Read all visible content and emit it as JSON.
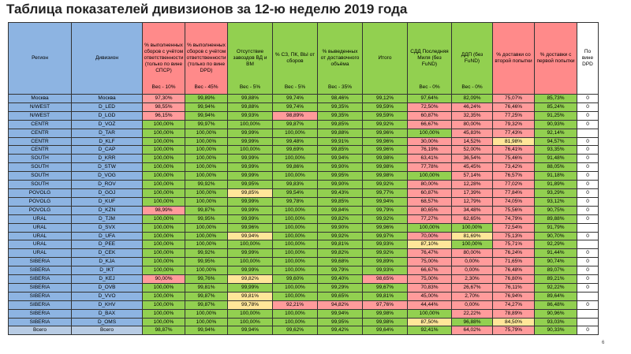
{
  "title": "Таблица показателей дивизионов за 12-ю неделю 2019 года",
  "slide_number": "6",
  "headers": [
    {
      "label": "Регион",
      "weight": ""
    },
    {
      "label": "Дивизион",
      "weight": ""
    },
    {
      "label": "% выполненных сборов с учётом ответственности (только по вине СПСР)",
      "weight": "Вес - 10%"
    },
    {
      "label": "% выполненных сборов с учётом ответственности (только по вине DPD)",
      "weight": "Вес - 45%"
    },
    {
      "label": "Отсутствие завоздов ВД и ВМ",
      "weight": "Вес - 5%"
    },
    {
      "label": "% СЗ, ПК, ВЫ от сборов",
      "weight": "Вес - 5%"
    },
    {
      "label": "% выведенных от доставочного объёма",
      "weight": "Вес - 35%"
    },
    {
      "label": "Итого",
      "weight": ""
    },
    {
      "label": "СДД Последняя Миля (без FuND)",
      "weight": "Вес - 0%"
    },
    {
      "label": "ДДП (без FuND)",
      "weight": "Вес - 0%"
    },
    {
      "label": "% доставки со второй попытки",
      "weight": ""
    },
    {
      "label": "% доставки с первой попытки",
      "weight": ""
    },
    {
      "label": "По вине DPD",
      "weight": ""
    }
  ],
  "rows": [
    {
      "cells": [
        "Москва",
        "Москва",
        "97,30%",
        "99,89%",
        "99,88%",
        "99,74%",
        "98,46%",
        "99,12%",
        "97,64%",
        "82,09%",
        "75,07%",
        "85,73%",
        "0"
      ],
      "colors": [
        "b",
        "b",
        "r",
        "g",
        "g",
        "g",
        "g",
        "g",
        "g",
        "g",
        "r",
        "g",
        "w"
      ]
    },
    {
      "cells": [
        "N/WEST",
        "D_LED",
        "98,55%",
        "99,94%",
        "99,88%",
        "99,74%",
        "99,35%",
        "99,59%",
        "72,50%",
        "46,24%",
        "76,46%",
        "85,24%",
        "0"
      ],
      "colors": [
        "b",
        "b",
        "r",
        "g",
        "g",
        "g",
        "g",
        "g",
        "r",
        "r",
        "r",
        "g",
        "w"
      ]
    },
    {
      "cells": [
        "N/WEST",
        "D_LGD",
        "96,15%",
        "99,94%",
        "99,93%",
        "98,89%",
        "99,35%",
        "99,59%",
        "60,87%",
        "32,35%",
        "77,25%",
        "91,25%",
        "0"
      ],
      "colors": [
        "b",
        "b",
        "r",
        "g",
        "g",
        "r",
        "g",
        "g",
        "r",
        "r",
        "r",
        "g",
        "w"
      ]
    },
    {
      "cells": [
        "CENTR",
        "D_VOZ",
        "100,00%",
        "99,97%",
        "100,00%",
        "99,87%",
        "99,85%",
        "99,92%",
        "66,67%",
        "80,00%",
        "79,32%",
        "90,93%",
        "0"
      ],
      "colors": [
        "b",
        "b",
        "g",
        "g",
        "g",
        "g",
        "g",
        "g",
        "r",
        "r",
        "r",
        "g",
        "w"
      ]
    },
    {
      "cells": [
        "CENTR",
        "D_TAR",
        "100,00%",
        "100,00%",
        "99,99%",
        "100,00%",
        "99,88%",
        "99,96%",
        "100,00%",
        "45,83%",
        "77,43%",
        "92,14%",
        ""
      ],
      "colors": [
        "b",
        "b",
        "g",
        "g",
        "g",
        "g",
        "g",
        "g",
        "g",
        "r",
        "r",
        "g",
        "w"
      ]
    },
    {
      "cells": [
        "CENTR",
        "D_KLF",
        "100,00%",
        "100,00%",
        "99,99%",
        "99,48%",
        "99,91%",
        "99,96%",
        "30,00%",
        "14,52%",
        "81,98%",
        "94,57%",
        "0"
      ],
      "colors": [
        "b",
        "b",
        "g",
        "g",
        "g",
        "g",
        "g",
        "g",
        "r",
        "r",
        "y",
        "g",
        "w"
      ]
    },
    {
      "cells": [
        "CENTR",
        "D_CAP",
        "100,00%",
        "100,00%",
        "100,00%",
        "99,69%",
        "99,85%",
        "99,96%",
        "76,19%",
        "52,00%",
        "76,41%",
        "93,35%",
        "0"
      ],
      "colors": [
        "b",
        "b",
        "g",
        "g",
        "g",
        "g",
        "g",
        "g",
        "r",
        "r",
        "r",
        "g",
        "w"
      ]
    },
    {
      "cells": [
        "SOUTH",
        "D_KRR",
        "100,00%",
        "100,00%",
        "99,99%",
        "100,00%",
        "99,94%",
        "99,98%",
        "63,41%",
        "36,54%",
        "75,46%",
        "91,48%",
        "0"
      ],
      "colors": [
        "b",
        "b",
        "g",
        "g",
        "g",
        "g",
        "g",
        "g",
        "r",
        "r",
        "r",
        "g",
        "w"
      ]
    },
    {
      "cells": [
        "SOUTH",
        "D_STW",
        "100,00%",
        "100,00%",
        "99,99%",
        "99,86%",
        "99,90%",
        "99,98%",
        "77,78%",
        "45,45%",
        "73,42%",
        "88,05%",
        "0"
      ],
      "colors": [
        "b",
        "b",
        "g",
        "g",
        "g",
        "g",
        "g",
        "g",
        "r",
        "r",
        "r",
        "g",
        "w"
      ]
    },
    {
      "cells": [
        "SOUTH",
        "D_VOG",
        "100,00%",
        "100,00%",
        "99,99%",
        "100,00%",
        "99,95%",
        "99,98%",
        "100,00%",
        "57,14%",
        "76,57%",
        "91,18%",
        "0"
      ],
      "colors": [
        "b",
        "b",
        "g",
        "g",
        "g",
        "g",
        "g",
        "g",
        "g",
        "r",
        "r",
        "g",
        "w"
      ]
    },
    {
      "cells": [
        "SOUTH",
        "D_ROV",
        "100,00%",
        "99,92%",
        "99,95%",
        "99,83%",
        "99,90%",
        "99,92%",
        "80,00%",
        "12,28%",
        "77,02%",
        "91,89%",
        "0"
      ],
      "colors": [
        "b",
        "b",
        "g",
        "g",
        "g",
        "g",
        "g",
        "g",
        "r",
        "r",
        "r",
        "g",
        "w"
      ]
    },
    {
      "cells": [
        "POVOLG",
        "D_GOJ",
        "100,00%",
        "100,00%",
        "99,85%",
        "99,54%",
        "99,43%",
        "99,77%",
        "60,87%",
        "17,39%",
        "77,84%",
        "93,29%",
        "0"
      ],
      "colors": [
        "b",
        "b",
        "g",
        "g",
        "y",
        "g",
        "g",
        "g",
        "r",
        "r",
        "r",
        "g",
        "w"
      ]
    },
    {
      "cells": [
        "POVOLG",
        "D_KUF",
        "100,00%",
        "100,00%",
        "99,99%",
        "99,78%",
        "99,85%",
        "99,94%",
        "68,57%",
        "12,79%",
        "74,05%",
        "93,12%",
        "0"
      ],
      "colors": [
        "b",
        "b",
        "g",
        "g",
        "g",
        "g",
        "g",
        "g",
        "r",
        "r",
        "r",
        "g",
        "w"
      ]
    },
    {
      "cells": [
        "POVOLG",
        "D_KZN",
        "98,99%",
        "99,87%",
        "99,99%",
        "100,00%",
        "99,84%",
        "99,79%",
        "80,65%",
        "34,48%",
        "75,56%",
        "90,75%",
        "0"
      ],
      "colors": [
        "b",
        "b",
        "r",
        "g",
        "g",
        "g",
        "g",
        "g",
        "r",
        "r",
        "r",
        "g",
        "w"
      ]
    },
    {
      "cells": [
        "URAL",
        "D_TJM",
        "100,00%",
        "99,95%",
        "99,99%",
        "100,00%",
        "99,82%",
        "99,92%",
        "77,27%",
        "62,65%",
        "74,79%",
        "89,88%",
        "0"
      ],
      "colors": [
        "b",
        "b",
        "g",
        "g",
        "g",
        "g",
        "g",
        "g",
        "r",
        "r",
        "r",
        "g",
        "w"
      ]
    },
    {
      "cells": [
        "URAL",
        "D_SVX",
        "100,00%",
        "100,00%",
        "99,96%",
        "100,00%",
        "99,90%",
        "99,96%",
        "100,00%",
        "100,00%",
        "72,54%",
        "91,79%",
        ""
      ],
      "colors": [
        "b",
        "b",
        "g",
        "g",
        "g",
        "g",
        "g",
        "g",
        "g",
        "g",
        "r",
        "g",
        "w"
      ]
    },
    {
      "cells": [
        "URAL",
        "D_UFA",
        "100,00%",
        "100,00%",
        "99,94%",
        "100,00%",
        "99,92%",
        "99,97%",
        "70,00%",
        "81,69%",
        "75,13%",
        "90,70%",
        "0"
      ],
      "colors": [
        "b",
        "b",
        "g",
        "g",
        "y",
        "g",
        "g",
        "g",
        "r",
        "y",
        "r",
        "g",
        "w"
      ]
    },
    {
      "cells": [
        "URAL",
        "D_PEE",
        "100,00%",
        "100,00%",
        "100,00%",
        "100,00%",
        "99,81%",
        "99,93%",
        "87,10%",
        "100,00%",
        "75,71%",
        "92,29%",
        ""
      ],
      "colors": [
        "b",
        "b",
        "g",
        "g",
        "g",
        "g",
        "g",
        "g",
        "y",
        "g",
        "r",
        "g",
        "w"
      ]
    },
    {
      "cells": [
        "URAL",
        "D_CEK",
        "100,00%",
        "99,92%",
        "99,99%",
        "100,00%",
        "99,82%",
        "99,92%",
        "76,47%",
        "80,00%",
        "76,24%",
        "91,44%",
        "0"
      ],
      "colors": [
        "b",
        "b",
        "g",
        "g",
        "g",
        "g",
        "g",
        "g",
        "r",
        "r",
        "r",
        "g",
        "w"
      ]
    },
    {
      "cells": [
        "SIBERIA",
        "D_KJA",
        "100,00%",
        "99,95%",
        "100,00%",
        "100,00%",
        "99,68%",
        "99,89%",
        "75,00%",
        "0,00%",
        "71,65%",
        "90,74%",
        "0"
      ],
      "colors": [
        "b",
        "b",
        "g",
        "g",
        "g",
        "g",
        "g",
        "g",
        "r",
        "r",
        "r",
        "g",
        "w"
      ]
    },
    {
      "cells": [
        "SIBERIA",
        "D_IKT",
        "100,00%",
        "100,00%",
        "99,99%",
        "100,00%",
        "99,79%",
        "99,93%",
        "66,67%",
        "0,00%",
        "76,48%",
        "89,07%",
        "0"
      ],
      "colors": [
        "b",
        "b",
        "g",
        "g",
        "g",
        "g",
        "g",
        "g",
        "r",
        "r",
        "r",
        "g",
        "w"
      ]
    },
    {
      "cells": [
        "SIBERIA",
        "D_KEJ",
        "90,00%",
        "99,76%",
        "99,82%",
        "99,60%",
        "99,40%",
        "98,65%",
        "75,00%",
        "2,30%",
        "76,80%",
        "89,21%",
        "0"
      ],
      "colors": [
        "b",
        "b",
        "r",
        "g",
        "y",
        "g",
        "g",
        "r",
        "r",
        "r",
        "r",
        "g",
        "w"
      ]
    },
    {
      "cells": [
        "SIBERIA",
        "D_OVB",
        "100,00%",
        "99,81%",
        "99,99%",
        "100,00%",
        "99,29%",
        "99,67%",
        "70,83%",
        "26,67%",
        "76,11%",
        "92,22%",
        "0"
      ],
      "colors": [
        "b",
        "b",
        "g",
        "g",
        "g",
        "g",
        "g",
        "g",
        "r",
        "r",
        "r",
        "g",
        "w"
      ]
    },
    {
      "cells": [
        "SIBERIA",
        "D_VVO",
        "100,00%",
        "99,87%",
        "99,81%",
        "100,00%",
        "99,65%",
        "99,81%",
        "45,00%",
        "2,70%",
        "76,94%",
        "89,64%",
        ""
      ],
      "colors": [
        "b",
        "b",
        "g",
        "g",
        "y",
        "g",
        "g",
        "g",
        "r",
        "r",
        "r",
        "g",
        "w"
      ]
    },
    {
      "cells": [
        "SIBERIA",
        "D_KHV",
        "100,00%",
        "99,87%",
        "99,78%",
        "92,21%",
        "94,82%",
        "97,76%",
        "44,44%",
        "0,00%",
        "74,27%",
        "86,48%",
        "0"
      ],
      "colors": [
        "b",
        "b",
        "g",
        "g",
        "y",
        "r",
        "r",
        "r",
        "r",
        "r",
        "r",
        "g",
        "w"
      ]
    },
    {
      "cells": [
        "SIBERIA",
        "D_BAX",
        "100,00%",
        "100,00%",
        "100,00%",
        "100,00%",
        "99,94%",
        "99,98%",
        "100,00%",
        "22,22%",
        "78,89%",
        "90,96%",
        ""
      ],
      "colors": [
        "b",
        "b",
        "g",
        "g",
        "g",
        "g",
        "g",
        "g",
        "g",
        "r",
        "r",
        "g",
        "w"
      ]
    },
    {
      "cells": [
        "SIBERIA",
        "D_OMS",
        "100,00%",
        "100,00%",
        "100,00%",
        "100,00%",
        "99,95%",
        "99,98%",
        "87,50%",
        "96,88%",
        "84,50%",
        "93,03%",
        ""
      ],
      "colors": [
        "b",
        "b",
        "g",
        "g",
        "g",
        "g",
        "g",
        "g",
        "y",
        "g",
        "y",
        "g",
        "w"
      ]
    },
    {
      "cells": [
        "Всего",
        "Всего",
        "98,87%",
        "99,94%",
        "99,94%",
        "99,62%",
        "99,42%",
        "99,64%",
        "92,41%",
        "64,02%",
        "75,79%",
        "90,33%",
        "0"
      ],
      "colors": [
        "lb",
        "lb",
        "g",
        "g",
        "g",
        "g",
        "g",
        "g",
        "g",
        "r",
        "r",
        "g",
        "w"
      ]
    }
  ],
  "colors": {
    "header_blue": "#8db4e2",
    "red": "#ff9b9b",
    "green": "#92d050",
    "yellow": "#ffe699",
    "white": "#ffffff"
  }
}
